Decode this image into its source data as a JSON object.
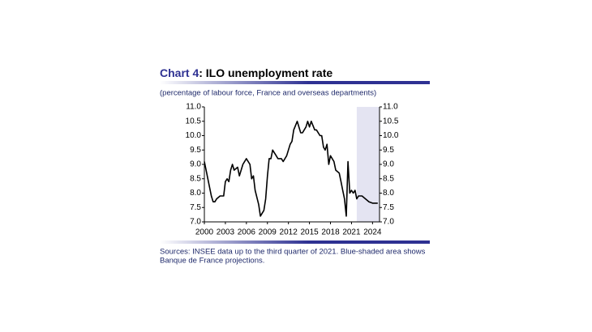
{
  "chart_data": {
    "type": "line",
    "title_prefix": "Chart 4",
    "title": ": ILO unemployment rate",
    "subtitle": "(percentage of labour force, France and overseas departments)",
    "sources": [
      "Sources: INSEE data up to the third quarter of 2021. Blue-shaded area shows",
      "Banque de France projections."
    ],
    "x": [
      2000.0,
      2000.5,
      2001.0,
      2001.25,
      2001.5,
      2001.75,
      2002.25,
      2002.75,
      2003.0,
      2003.25,
      2003.5,
      2003.75,
      2004.0,
      2004.25,
      2004.75,
      2005.0,
      2005.5,
      2006.0,
      2006.5,
      2006.75,
      2007.0,
      2007.25,
      2007.75,
      2008.0,
      2008.5,
      2008.75,
      2009.0,
      2009.25,
      2009.5,
      2009.75,
      2010.25,
      2010.5,
      2011.0,
      2011.25,
      2011.75,
      2012.25,
      2012.5,
      2012.75,
      2013.25,
      2013.75,
      2014.0,
      2014.5,
      2014.75,
      2015.0,
      2015.25,
      2015.75,
      2016.0,
      2016.5,
      2016.75,
      2017.0,
      2017.25,
      2017.5,
      2017.75,
      2018.0,
      2018.5,
      2018.75,
      2019.25,
      2019.5,
      2019.75,
      2020.0,
      2020.25,
      2020.5,
      2020.75,
      2021.0,
      2021.25,
      2021.5,
      2021.75,
      2022.0,
      2022.5,
      2023.0,
      2023.5,
      2024.0,
      2024.75
    ],
    "series": [
      {
        "color": "#000000",
        "values": [
          9.1,
          8.5,
          7.9,
          7.7,
          7.7,
          7.8,
          7.9,
          7.9,
          8.4,
          8.5,
          8.4,
          8.8,
          9.0,
          8.8,
          8.9,
          8.6,
          9.0,
          9.2,
          9.0,
          8.5,
          8.6,
          8.1,
          7.6,
          7.2,
          7.4,
          7.8,
          8.6,
          9.2,
          9.2,
          9.5,
          9.3,
          9.2,
          9.2,
          9.1,
          9.3,
          9.7,
          9.8,
          10.2,
          10.5,
          10.1,
          10.1,
          10.3,
          10.5,
          10.3,
          10.5,
          10.2,
          10.2,
          10.0,
          10.0,
          9.6,
          9.5,
          9.7,
          9.0,
          9.3,
          9.1,
          8.8,
          8.7,
          8.4,
          8.1,
          7.8,
          7.2,
          9.1,
          8.0,
          8.1,
          8.0,
          8.1,
          7.8,
          7.9,
          7.9,
          7.8,
          7.7,
          7.65,
          7.65
        ]
      }
    ],
    "xlim": [
      2000,
      2025
    ],
    "xticks": [
      2000,
      2003,
      2006,
      2009,
      2012,
      2015,
      2018,
      2021,
      2024
    ],
    "ylim": [
      7,
      11
    ],
    "yticks": [
      {
        "value": 7,
        "label": "7.0"
      },
      {
        "value": 7.5,
        "label": "7.5"
      },
      {
        "value": 8,
        "label": "8.0"
      },
      {
        "value": 8.5,
        "label": "8.5"
      },
      {
        "value": 9,
        "label": "9.0"
      },
      {
        "value": 9.5,
        "label": "9.5"
      },
      {
        "value": 10,
        "label": "10.0"
      },
      {
        "value": 10.5,
        "label": "10.5"
      },
      {
        "value": 11,
        "label": "11.0"
      }
    ],
    "shaded_x": [
      2021.75,
      2025
    ],
    "shade_color": "#e4e4f2",
    "title_color": "#2e3192"
  }
}
